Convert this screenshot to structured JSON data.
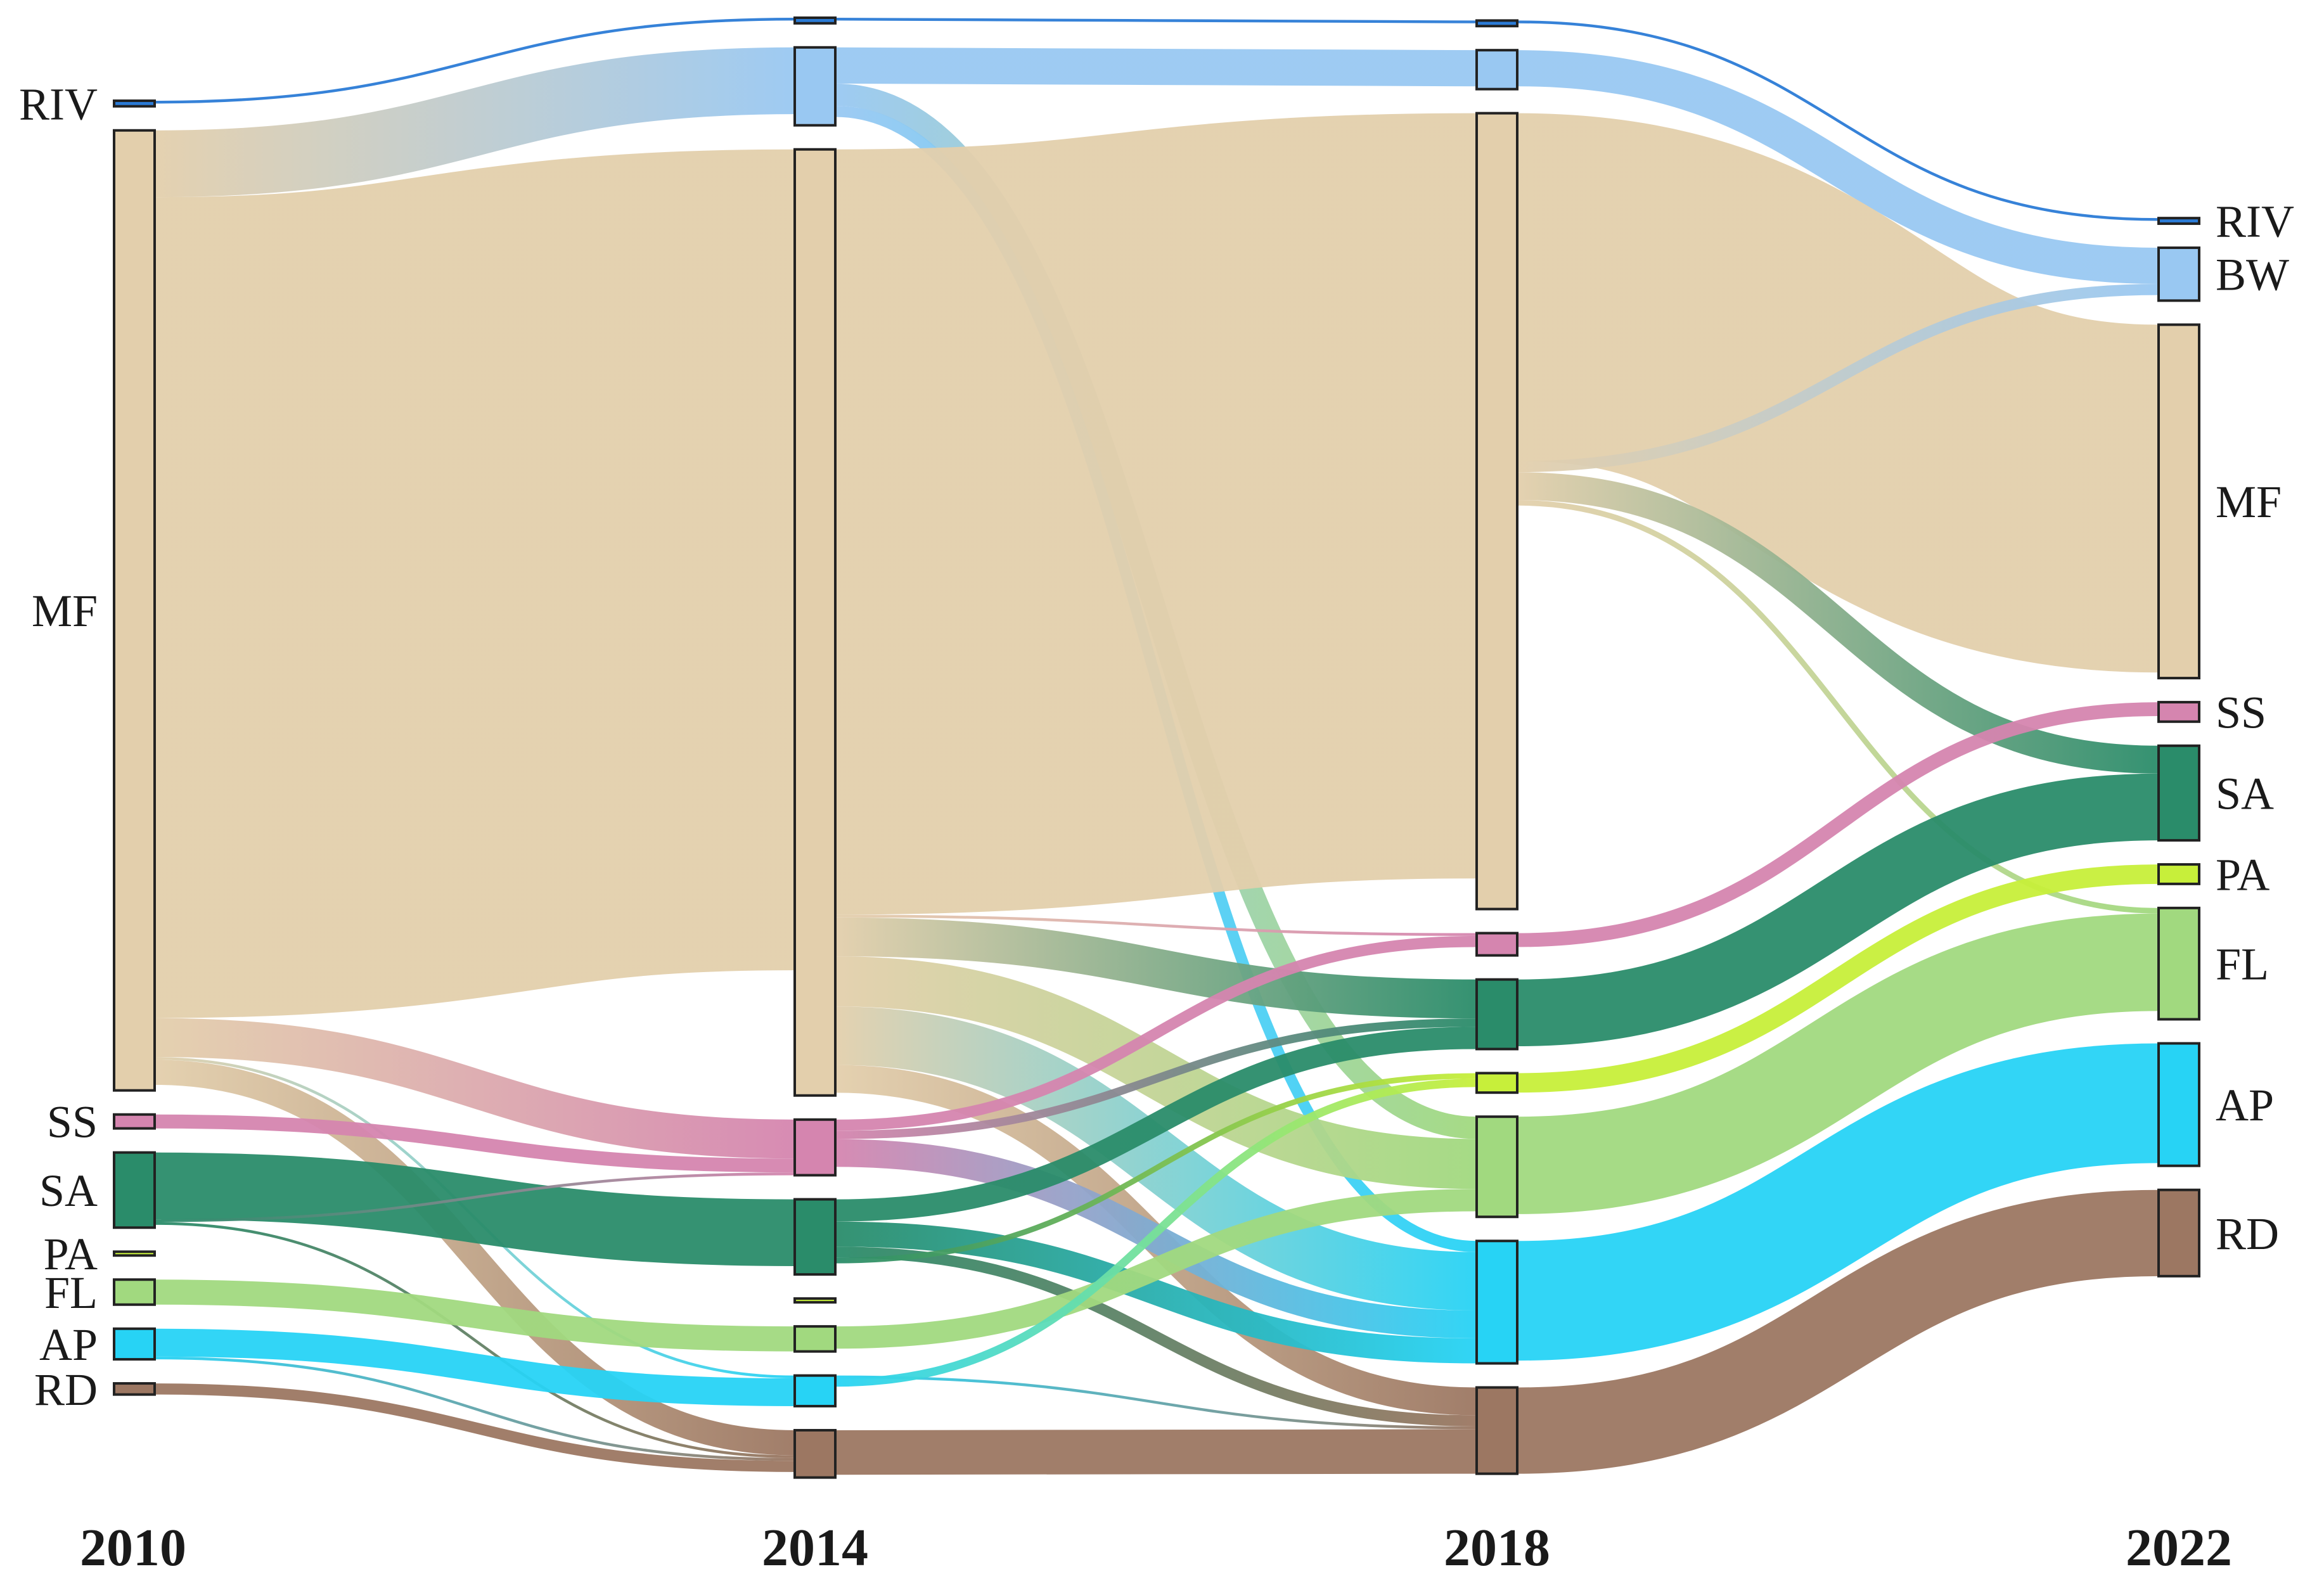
{
  "years": [
    "2010",
    "2014",
    "2018",
    "2022"
  ],
  "classes": {
    "RIV": "#2b7bd6",
    "BW": "#99c8f2",
    "MF": "#e3cfac",
    "SS": "#d585af",
    "SA": "#2a8c6a",
    "PA": "#c7ef3a",
    "FL": "#a1d97f",
    "AP": "#27d3f5",
    "RD": "#9c7762"
  },
  "columns": [
    {
      "year": "2010",
      "labels": [
        {
          "id": "RIV",
          "text": "RIV"
        },
        {
          "id": "MF",
          "text": "MF"
        },
        {
          "id": "SS",
          "text": "SS"
        },
        {
          "id": "SA",
          "text": "SA"
        },
        {
          "id": "PA",
          "text": "PA"
        },
        {
          "id": "FL",
          "text": "FL"
        },
        {
          "id": "AP",
          "text": "AP"
        },
        {
          "id": "RD",
          "text": "RD"
        }
      ]
    },
    {
      "year": "2014",
      "labels": []
    },
    {
      "year": "2018",
      "labels": []
    },
    {
      "year": "2022",
      "labels": [
        {
          "id": "RIV",
          "text": "RIV"
        },
        {
          "id": "BW",
          "text": "BW"
        },
        {
          "id": "MF",
          "text": "MF"
        },
        {
          "id": "SS",
          "text": "SS"
        },
        {
          "id": "SA",
          "text": "SA"
        },
        {
          "id": "PA",
          "text": "PA"
        },
        {
          "id": "FL",
          "text": "FL"
        },
        {
          "id": "AP",
          "text": "AP"
        },
        {
          "id": "RD",
          "text": "RD"
        }
      ]
    }
  ],
  "node_values": {
    "2010": {
      "RIV": 2,
      "MF": 345,
      "SS": 5,
      "SA": 27,
      "PA": 1,
      "FL": 9,
      "AP": 11,
      "RD": 4
    },
    "2014": {
      "RIV": 2,
      "BW": 28,
      "MF": 340,
      "SS": 20,
      "SA": 27,
      "PA": 1,
      "FL": 9,
      "AP": 11,
      "RD": 17
    },
    "2018": {
      "RIV": 2,
      "BW": 14,
      "MF": 286,
      "SS": 8,
      "SA": 25,
      "PA": 7,
      "FL": 36,
      "AP": 44,
      "RD": 31
    },
    "2022": {
      "RIV": 2,
      "BW": 19,
      "MF": 127,
      "SS": 7,
      "SA": 34,
      "PA": 7,
      "FL": 40,
      "AP": 44,
      "RD": 31
    }
  },
  "flows": [
    {
      "from": "2010.RIV",
      "to": "2014.RIV",
      "value": 1
    },
    {
      "from": "2010.MF",
      "to": "2014.BW",
      "value": 24
    },
    {
      "from": "2010.MF",
      "to": "2014.MF",
      "value": 295
    },
    {
      "from": "2010.MF",
      "to": "2014.SS",
      "value": 14
    },
    {
      "from": "2010.MF",
      "to": "2014.AP",
      "value": 1
    },
    {
      "from": "2010.MF",
      "to": "2014.RD",
      "value": 9
    },
    {
      "from": "2010.SS",
      "to": "2014.SS",
      "value": 5
    },
    {
      "from": "2010.SA",
      "to": "2014.SA",
      "value": 24
    },
    {
      "from": "2010.SA",
      "to": "2014.SS",
      "value": 1
    },
    {
      "from": "2010.SA",
      "to": "2014.RD",
      "value": 1
    },
    {
      "from": "2010.FL",
      "to": "2014.FL",
      "value": 9
    },
    {
      "from": "2010.AP",
      "to": "2014.AP",
      "value": 10
    },
    {
      "from": "2010.AP",
      "to": "2014.RD",
      "value": 1
    },
    {
      "from": "2010.RD",
      "to": "2014.RD",
      "value": 4
    },
    {
      "from": "2014.RIV",
      "to": "2018.RIV",
      "value": 1
    },
    {
      "from": "2014.BW",
      "to": "2018.BW",
      "value": 13
    },
    {
      "from": "2014.BW",
      "to": "2018.FL",
      "value": 8
    },
    {
      "from": "2014.BW",
      "to": "2018.AP",
      "value": 4
    },
    {
      "from": "2014.MF",
      "to": "2018.MF",
      "value": 275
    },
    {
      "from": "2014.MF",
      "to": "2018.SS",
      "value": 1
    },
    {
      "from": "2014.MF",
      "to": "2018.SA",
      "value": 14
    },
    {
      "from": "2014.MF",
      "to": "2018.FL",
      "value": 18
    },
    {
      "from": "2014.MF",
      "to": "2018.AP",
      "value": 21
    },
    {
      "from": "2014.MF",
      "to": "2018.RD",
      "value": 10
    },
    {
      "from": "2014.SS",
      "to": "2018.SS",
      "value": 4
    },
    {
      "from": "2014.SS",
      "to": "2018.SA",
      "value": 3
    },
    {
      "from": "2014.SS",
      "to": "2018.AP",
      "value": 10
    },
    {
      "from": "2014.SA",
      "to": "2018.SA",
      "value": 8
    },
    {
      "from": "2014.SA",
      "to": "2018.AP",
      "value": 9
    },
    {
      "from": "2014.SA",
      "to": "2018.RD",
      "value": 4
    },
    {
      "from": "2014.SA",
      "to": "2018.PA",
      "value": 2
    },
    {
      "from": "2014.FL",
      "to": "2018.FL",
      "value": 8
    },
    {
      "from": "2014.AP",
      "to": "2018.RD",
      "value": 1
    },
    {
      "from": "2014.AP",
      "to": "2018.PA",
      "value": 3
    },
    {
      "from": "2014.RD",
      "to": "2018.RD",
      "value": 16
    },
    {
      "from": "2018.RIV",
      "to": "2022.RIV",
      "value": 1
    },
    {
      "from": "2018.BW",
      "to": "2022.BW",
      "value": 13
    },
    {
      "from": "2018.MF",
      "to": "2022.MF",
      "value": 125
    },
    {
      "from": "2018.MF",
      "to": "2022.BW",
      "value": 4
    },
    {
      "from": "2018.MF",
      "to": "2022.SA",
      "value": 10
    },
    {
      "from": "2018.MF",
      "to": "2022.FL",
      "value": 2
    },
    {
      "from": "2018.SS",
      "to": "2022.SS",
      "value": 5
    },
    {
      "from": "2018.SA",
      "to": "2022.SA",
      "value": 24
    },
    {
      "from": "2018.PA",
      "to": "2022.PA",
      "value": 7
    },
    {
      "from": "2018.FL",
      "to": "2022.FL",
      "value": 35
    },
    {
      "from": "2018.AP",
      "to": "2022.AP",
      "value": 43
    },
    {
      "from": "2018.RD",
      "to": "2022.RD",
      "value": 31
    }
  ]
}
